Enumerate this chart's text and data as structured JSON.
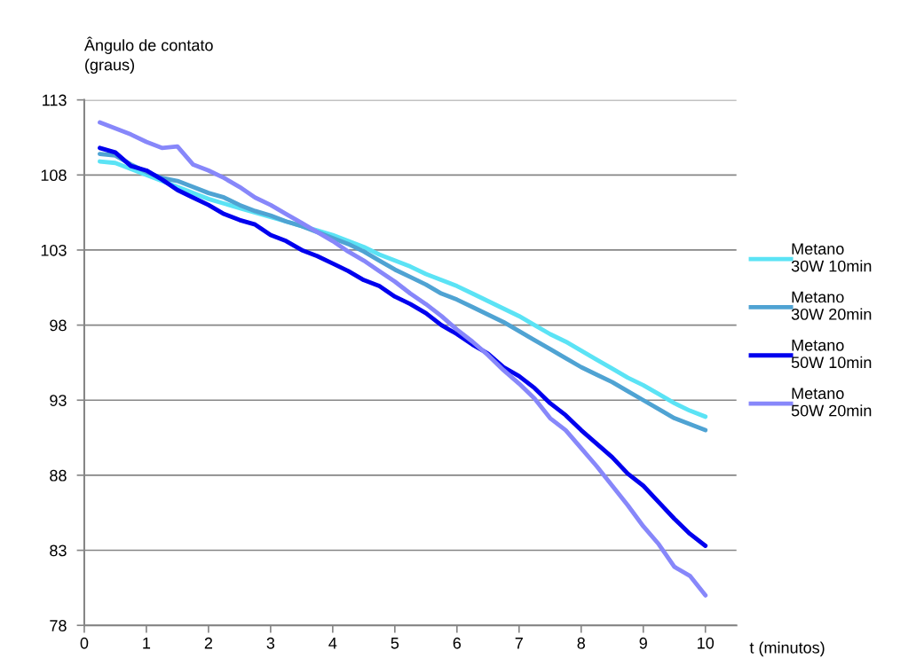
{
  "chart_data": {
    "type": "line",
    "ylabel": "Ângulo de contato\n(graus)",
    "xlabel": "t (minutos)",
    "x": [
      0.25,
      0.5,
      0.75,
      1,
      1.25,
      1.5,
      1.75,
      2,
      2.25,
      2.5,
      2.75,
      3,
      3.25,
      3.5,
      3.75,
      4,
      4.25,
      4.5,
      4.75,
      5,
      5.25,
      5.5,
      5.75,
      6,
      6.25,
      6.5,
      6.75,
      7,
      7.25,
      7.5,
      7.75,
      8,
      8.25,
      8.5,
      8.75,
      9,
      9.25,
      9.5,
      9.75,
      10
    ],
    "series": [
      {
        "name": "Metano\n30W 10min",
        "color": "#5be3f5",
        "values": [
          108.9,
          108.8,
          108.4,
          108.0,
          107.6,
          107.2,
          106.8,
          106.4,
          106.1,
          105.8,
          105.5,
          105.2,
          104.9,
          104.6,
          104.3,
          104.0,
          103.6,
          103.2,
          102.7,
          102.3,
          101.9,
          101.4,
          101.0,
          100.6,
          100.1,
          99.6,
          99.1,
          98.6,
          98.0,
          97.4,
          96.9,
          96.3,
          95.7,
          95.1,
          94.5,
          94.0,
          93.4,
          92.8,
          92.3,
          91.9
        ]
      },
      {
        "name": "Metano\n30W 20min",
        "color": "#4fa3d3",
        "values": [
          109.4,
          109.3,
          108.7,
          108.2,
          107.8,
          107.6,
          107.2,
          106.8,
          106.5,
          106.0,
          105.6,
          105.3,
          104.9,
          104.6,
          104.2,
          103.8,
          103.4,
          102.9,
          102.3,
          101.7,
          101.2,
          100.7,
          100.1,
          99.7,
          99.2,
          98.7,
          98.2,
          97.6,
          97.0,
          96.4,
          95.8,
          95.2,
          94.7,
          94.2,
          93.6,
          93.0,
          92.4,
          91.8,
          91.4,
          91.0
        ]
      },
      {
        "name": "Metano\n50W 10min",
        "color": "#0000ee",
        "values": [
          109.8,
          109.5,
          108.6,
          108.3,
          107.7,
          107.0,
          106.5,
          106.0,
          105.4,
          105.0,
          104.7,
          104.0,
          103.6,
          103.0,
          102.6,
          102.1,
          101.6,
          101.0,
          100.6,
          99.9,
          99.4,
          98.8,
          98.0,
          97.4,
          96.7,
          96.1,
          95.2,
          94.6,
          93.8,
          92.8,
          92.0,
          91.0,
          90.1,
          89.2,
          88.1,
          87.3,
          86.2,
          85.1,
          84.1,
          83.3
        ]
      },
      {
        "name": "Metano\n50W 20min",
        "color": "#8787fa",
        "values": [
          111.5,
          111.1,
          110.7,
          110.2,
          109.8,
          109.9,
          108.7,
          108.3,
          107.8,
          107.2,
          106.5,
          106.0,
          105.4,
          104.8,
          104.2,
          103.6,
          102.9,
          102.3,
          101.6,
          100.9,
          100.1,
          99.4,
          98.6,
          97.7,
          96.9,
          96.0,
          95.0,
          94.1,
          93.1,
          91.8,
          91.0,
          89.8,
          88.6,
          87.3,
          86.0,
          84.6,
          83.4,
          81.9,
          81.3,
          80.0
        ]
      }
    ],
    "xlim": [
      0,
      10.5
    ],
    "xticks": [
      0,
      1,
      2,
      3,
      4,
      5,
      6,
      7,
      8,
      9,
      10
    ],
    "ylim": [
      78,
      113
    ],
    "yticks": [
      78,
      83,
      88,
      93,
      98,
      103,
      108,
      113
    ],
    "grid": "y",
    "legend": "right",
    "marker": "none",
    "line_style": "solid"
  }
}
